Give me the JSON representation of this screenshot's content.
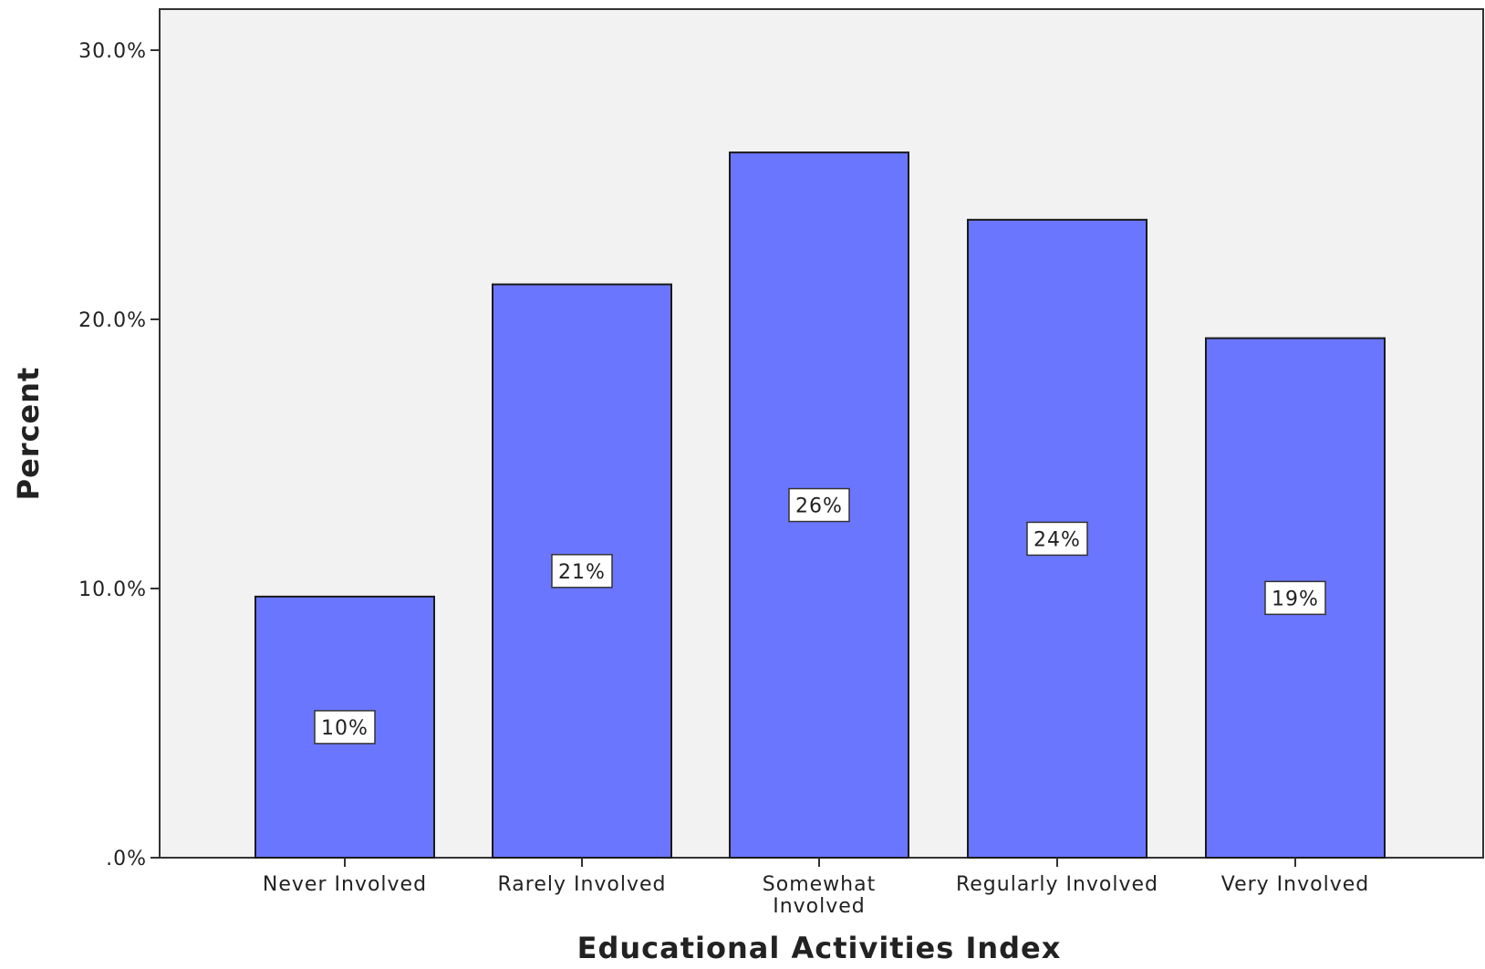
{
  "chart_data": {
    "type": "bar",
    "categories": [
      "Never Involved",
      "Rarely Involved",
      "Somewhat\nInvolved",
      "Regularly Involved",
      "Very Involved"
    ],
    "values": [
      9.7,
      21.3,
      26.2,
      23.7,
      19.3
    ],
    "data_labels": [
      "10%",
      "21%",
      "26%",
      "24%",
      "19%"
    ],
    "title": "",
    "xlabel": "Educational Activities Index",
    "ylabel": "Percent",
    "ylim": [
      0,
      30
    ],
    "y_ticks": [
      0,
      10,
      20,
      30
    ],
    "y_tick_labels": [
      ".0%",
      "10.0%",
      "20.0%",
      "30.0%"
    ],
    "grid": false,
    "legend": "none",
    "colors": {
      "bar_fill": "#6b76ff",
      "bar_stroke": "#1a1a1a",
      "plot_background": "#f2f2f2",
      "label_box": "#ffffff"
    }
  }
}
